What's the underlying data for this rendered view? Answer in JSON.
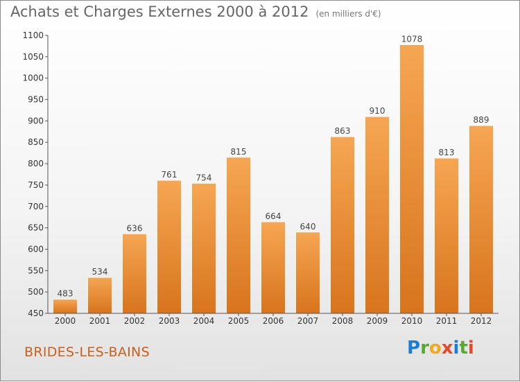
{
  "title": "Achats et Charges Externes 2000 à 2012",
  "subtitle": "(en milliers d'€)",
  "location": "BRIDES-LES-BAINS",
  "brand": {
    "text": "Proxiti",
    "colors": [
      "#1a7fd4",
      "#5aa832",
      "#f2a81d",
      "#e24a2b",
      "#1a7fd4",
      "#5aa832",
      "#e24a2b"
    ]
  },
  "chart_data": {
    "type": "bar",
    "title": "Achats et Charges Externes 2000 à 2012",
    "subtitle": "(en milliers d'€)",
    "categories": [
      "2000",
      "2001",
      "2002",
      "2003",
      "2004",
      "2005",
      "2006",
      "2007",
      "2008",
      "2009",
      "2010",
      "2011",
      "2012"
    ],
    "values": [
      483,
      534,
      636,
      761,
      754,
      815,
      664,
      640,
      863,
      910,
      1078,
      813,
      889
    ],
    "ylim": [
      450,
      1100
    ],
    "yticks": [
      450,
      500,
      550,
      600,
      650,
      700,
      750,
      800,
      850,
      900,
      950,
      1000,
      1050,
      1100
    ],
    "grid": false,
    "bar_color": "#f29a3f"
  }
}
